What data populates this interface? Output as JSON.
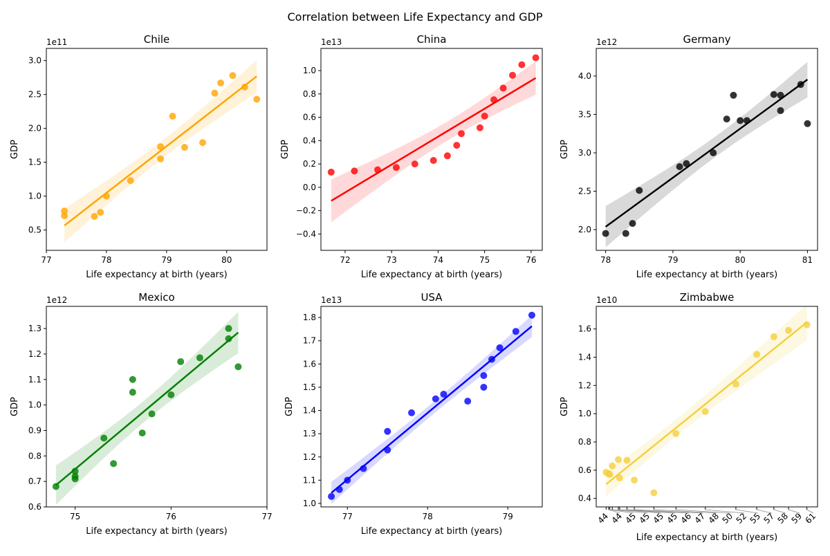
{
  "figure_title": "Correlation between Life Expectancy and GDP",
  "chart_data": [
    {
      "type": "scatter",
      "title": "Chile",
      "color": "#ffa500",
      "xlabel": "Life expectancy at birth (years)",
      "ylabel": "GDP",
      "y_offset_label": "1e11",
      "xlim": [
        77,
        80.67
      ],
      "ylim": [
        0.2,
        3.18
      ],
      "xticks": [
        77,
        78,
        79,
        80
      ],
      "xtick_labels": [
        "77",
        "78",
        "79",
        "80"
      ],
      "yticks": [
        0.5,
        1.0,
        1.5,
        2.0,
        2.5,
        3.0
      ],
      "ytick_labels": [
        "0.5",
        "1.0",
        "1.5",
        "2.0",
        "2.5",
        "3.0"
      ],
      "regression": true,
      "x": [
        77.3,
        77.3,
        77.8,
        77.9,
        78.0,
        78.4,
        78.9,
        78.9,
        79.1,
        79.3,
        79.6,
        79.8,
        79.9,
        80.1,
        80.3,
        80.5
      ],
      "y": [
        0.78,
        0.71,
        0.7,
        0.76,
        1.0,
        1.23,
        1.73,
        1.55,
        2.18,
        1.72,
        1.79,
        2.52,
        2.67,
        2.78,
        2.61,
        2.43
      ]
    },
    {
      "type": "scatter",
      "title": "China",
      "color": "#ff0000",
      "xlabel": "Life expectancy at birth (years)",
      "ylabel": "GDP",
      "y_offset_label": "1e13",
      "xlim": [
        71.48,
        76.24
      ],
      "ylim": [
        -0.54,
        1.19
      ],
      "xticks": [
        72,
        73,
        74,
        75,
        76
      ],
      "xtick_labels": [
        "72",
        "73",
        "74",
        "75",
        "76"
      ],
      "yticks": [
        -0.4,
        -0.2,
        0.0,
        0.2,
        0.4,
        0.6,
        0.8,
        1.0
      ],
      "ytick_labels": [
        "−0.4",
        "−0.2",
        "0.0",
        "0.2",
        "0.4",
        "0.6",
        "0.8",
        "1.0"
      ],
      "regression": true,
      "x": [
        71.7,
        72.2,
        72.7,
        73.1,
        73.5,
        73.9,
        74.2,
        74.4,
        74.5,
        74.9,
        75.0,
        75.2,
        75.4,
        75.6,
        75.8,
        76.1
      ],
      "y": [
        0.13,
        0.14,
        0.15,
        0.17,
        0.2,
        0.23,
        0.27,
        0.36,
        0.46,
        0.51,
        0.61,
        0.75,
        0.85,
        0.96,
        1.05,
        1.11
      ]
    },
    {
      "type": "scatter",
      "title": "Germany",
      "color": "#000000",
      "xlabel": "Life expectancy at birth (years)",
      "ylabel": "GDP",
      "y_offset_label": "1e12",
      "xlim": [
        77.86,
        81.15
      ],
      "ylim": [
        1.73,
        4.36
      ],
      "xticks": [
        78,
        79,
        80,
        81
      ],
      "xtick_labels": [
        "78",
        "79",
        "80",
        "81"
      ],
      "yticks": [
        2.0,
        2.5,
        3.0,
        3.5,
        4.0
      ],
      "ytick_labels": [
        "2.0",
        "2.5",
        "3.0",
        "3.5",
        "4.0"
      ],
      "regression": true,
      "x": [
        78.0,
        78.3,
        78.4,
        78.5,
        79.1,
        79.2,
        79.6,
        79.8,
        79.9,
        80.0,
        80.1,
        80.5,
        80.6,
        80.6,
        80.9,
        81.0
      ],
      "y": [
        1.95,
        1.95,
        2.08,
        2.51,
        2.82,
        2.86,
        3.0,
        3.44,
        3.75,
        3.42,
        3.42,
        3.76,
        3.75,
        3.55,
        3.89,
        3.38
      ]
    },
    {
      "type": "scatter",
      "title": "Mexico",
      "color": "#008000",
      "xlabel": "Life expectancy at birth (years)",
      "ylabel": "GDP",
      "y_offset_label": "1e12",
      "xlim": [
        74.7,
        77.0
      ],
      "ylim": [
        0.6,
        1.387
      ],
      "xticks": [
        75,
        76,
        77
      ],
      "xtick_labels": [
        "75",
        "76",
        "77"
      ],
      "yticks": [
        0.6,
        0.7,
        0.8,
        0.9,
        1.0,
        1.1,
        1.2,
        1.3
      ],
      "ytick_labels": [
        "0.6",
        "0.7",
        "0.8",
        "0.9",
        "1.0",
        "1.1",
        "1.2",
        "1.3"
      ],
      "regression": true,
      "x": [
        74.8,
        75.0,
        75.0,
        75.0,
        75.3,
        75.4,
        75.6,
        75.6,
        75.7,
        75.8,
        76.0,
        76.1,
        76.3,
        76.6,
        76.6,
        76.7
      ],
      "y": [
        0.68,
        0.74,
        0.72,
        0.71,
        0.87,
        0.77,
        1.1,
        1.05,
        0.89,
        0.965,
        1.04,
        1.17,
        1.185,
        1.3,
        1.26,
        1.15
      ]
    },
    {
      "type": "scatter",
      "title": "USA",
      "color": "#0000ff",
      "xlabel": "Life expectancy at birth (years)",
      "ylabel": "GDP",
      "y_offset_label": "1e13",
      "xlim": [
        76.67,
        79.43
      ],
      "ylim": [
        0.985,
        1.848
      ],
      "xticks": [
        77,
        78,
        79
      ],
      "xtick_labels": [
        "77",
        "78",
        "79"
      ],
      "yticks": [
        1.0,
        1.1,
        1.2,
        1.3,
        1.4,
        1.5,
        1.6,
        1.7,
        1.8
      ],
      "ytick_labels": [
        "1.0",
        "1.1",
        "1.2",
        "1.3",
        "1.4",
        "1.5",
        "1.6",
        "1.7",
        "1.8"
      ],
      "regression": true,
      "x": [
        76.8,
        76.9,
        77.0,
        77.2,
        77.5,
        77.5,
        77.8,
        78.1,
        78.2,
        78.5,
        78.7,
        78.7,
        78.8,
        78.9,
        79.1,
        79.3
      ],
      "y": [
        1.03,
        1.06,
        1.1,
        1.15,
        1.31,
        1.23,
        1.39,
        1.45,
        1.47,
        1.44,
        1.55,
        1.5,
        1.62,
        1.67,
        1.74,
        1.81
      ]
    },
    {
      "type": "scatter",
      "title": "Zimbabwe",
      "color": "#f4d03f",
      "xlabel": "Life expectancy at birth (years)",
      "ylabel": "GDP",
      "y_offset_label": "1e10",
      "xlim": [
        43.49,
        61.57
      ],
      "ylim": [
        0.34,
        1.76
      ],
      "xticks": [
        44.3,
        44.5,
        44.6,
        44.8,
        45.3,
        45.4,
        46.0,
        46.6,
        48.2,
        50.0,
        52.4,
        54.9,
        56.6,
        58.0,
        59.2,
        60.7
      ],
      "xtick_labels": [
        "44",
        "44",
        "45",
        "45",
        "45",
        "45",
        "46",
        "47",
        "48",
        "50",
        "52",
        "55",
        "57",
        "58",
        "59",
        "61"
      ],
      "xtick_rotation": 45,
      "yticks": [
        0.4,
        0.6,
        0.8,
        1.0,
        1.2,
        1.4,
        1.6
      ],
      "ytick_labels": [
        "0.4",
        "0.6",
        "0.8",
        "1.0",
        "1.2",
        "1.4",
        "1.6"
      ],
      "regression": true,
      "x": [
        44.3,
        44.5,
        44.6,
        44.8,
        45.3,
        45.4,
        46.0,
        46.6,
        48.2,
        50.0,
        52.4,
        54.9,
        56.6,
        58.0,
        59.2,
        60.7
      ],
      "y": [
        0.585,
        0.575,
        0.57,
        0.63,
        0.675,
        0.545,
        0.67,
        0.53,
        0.44,
        0.86,
        1.015,
        1.21,
        1.42,
        1.545,
        1.59,
        1.63
      ]
    }
  ]
}
